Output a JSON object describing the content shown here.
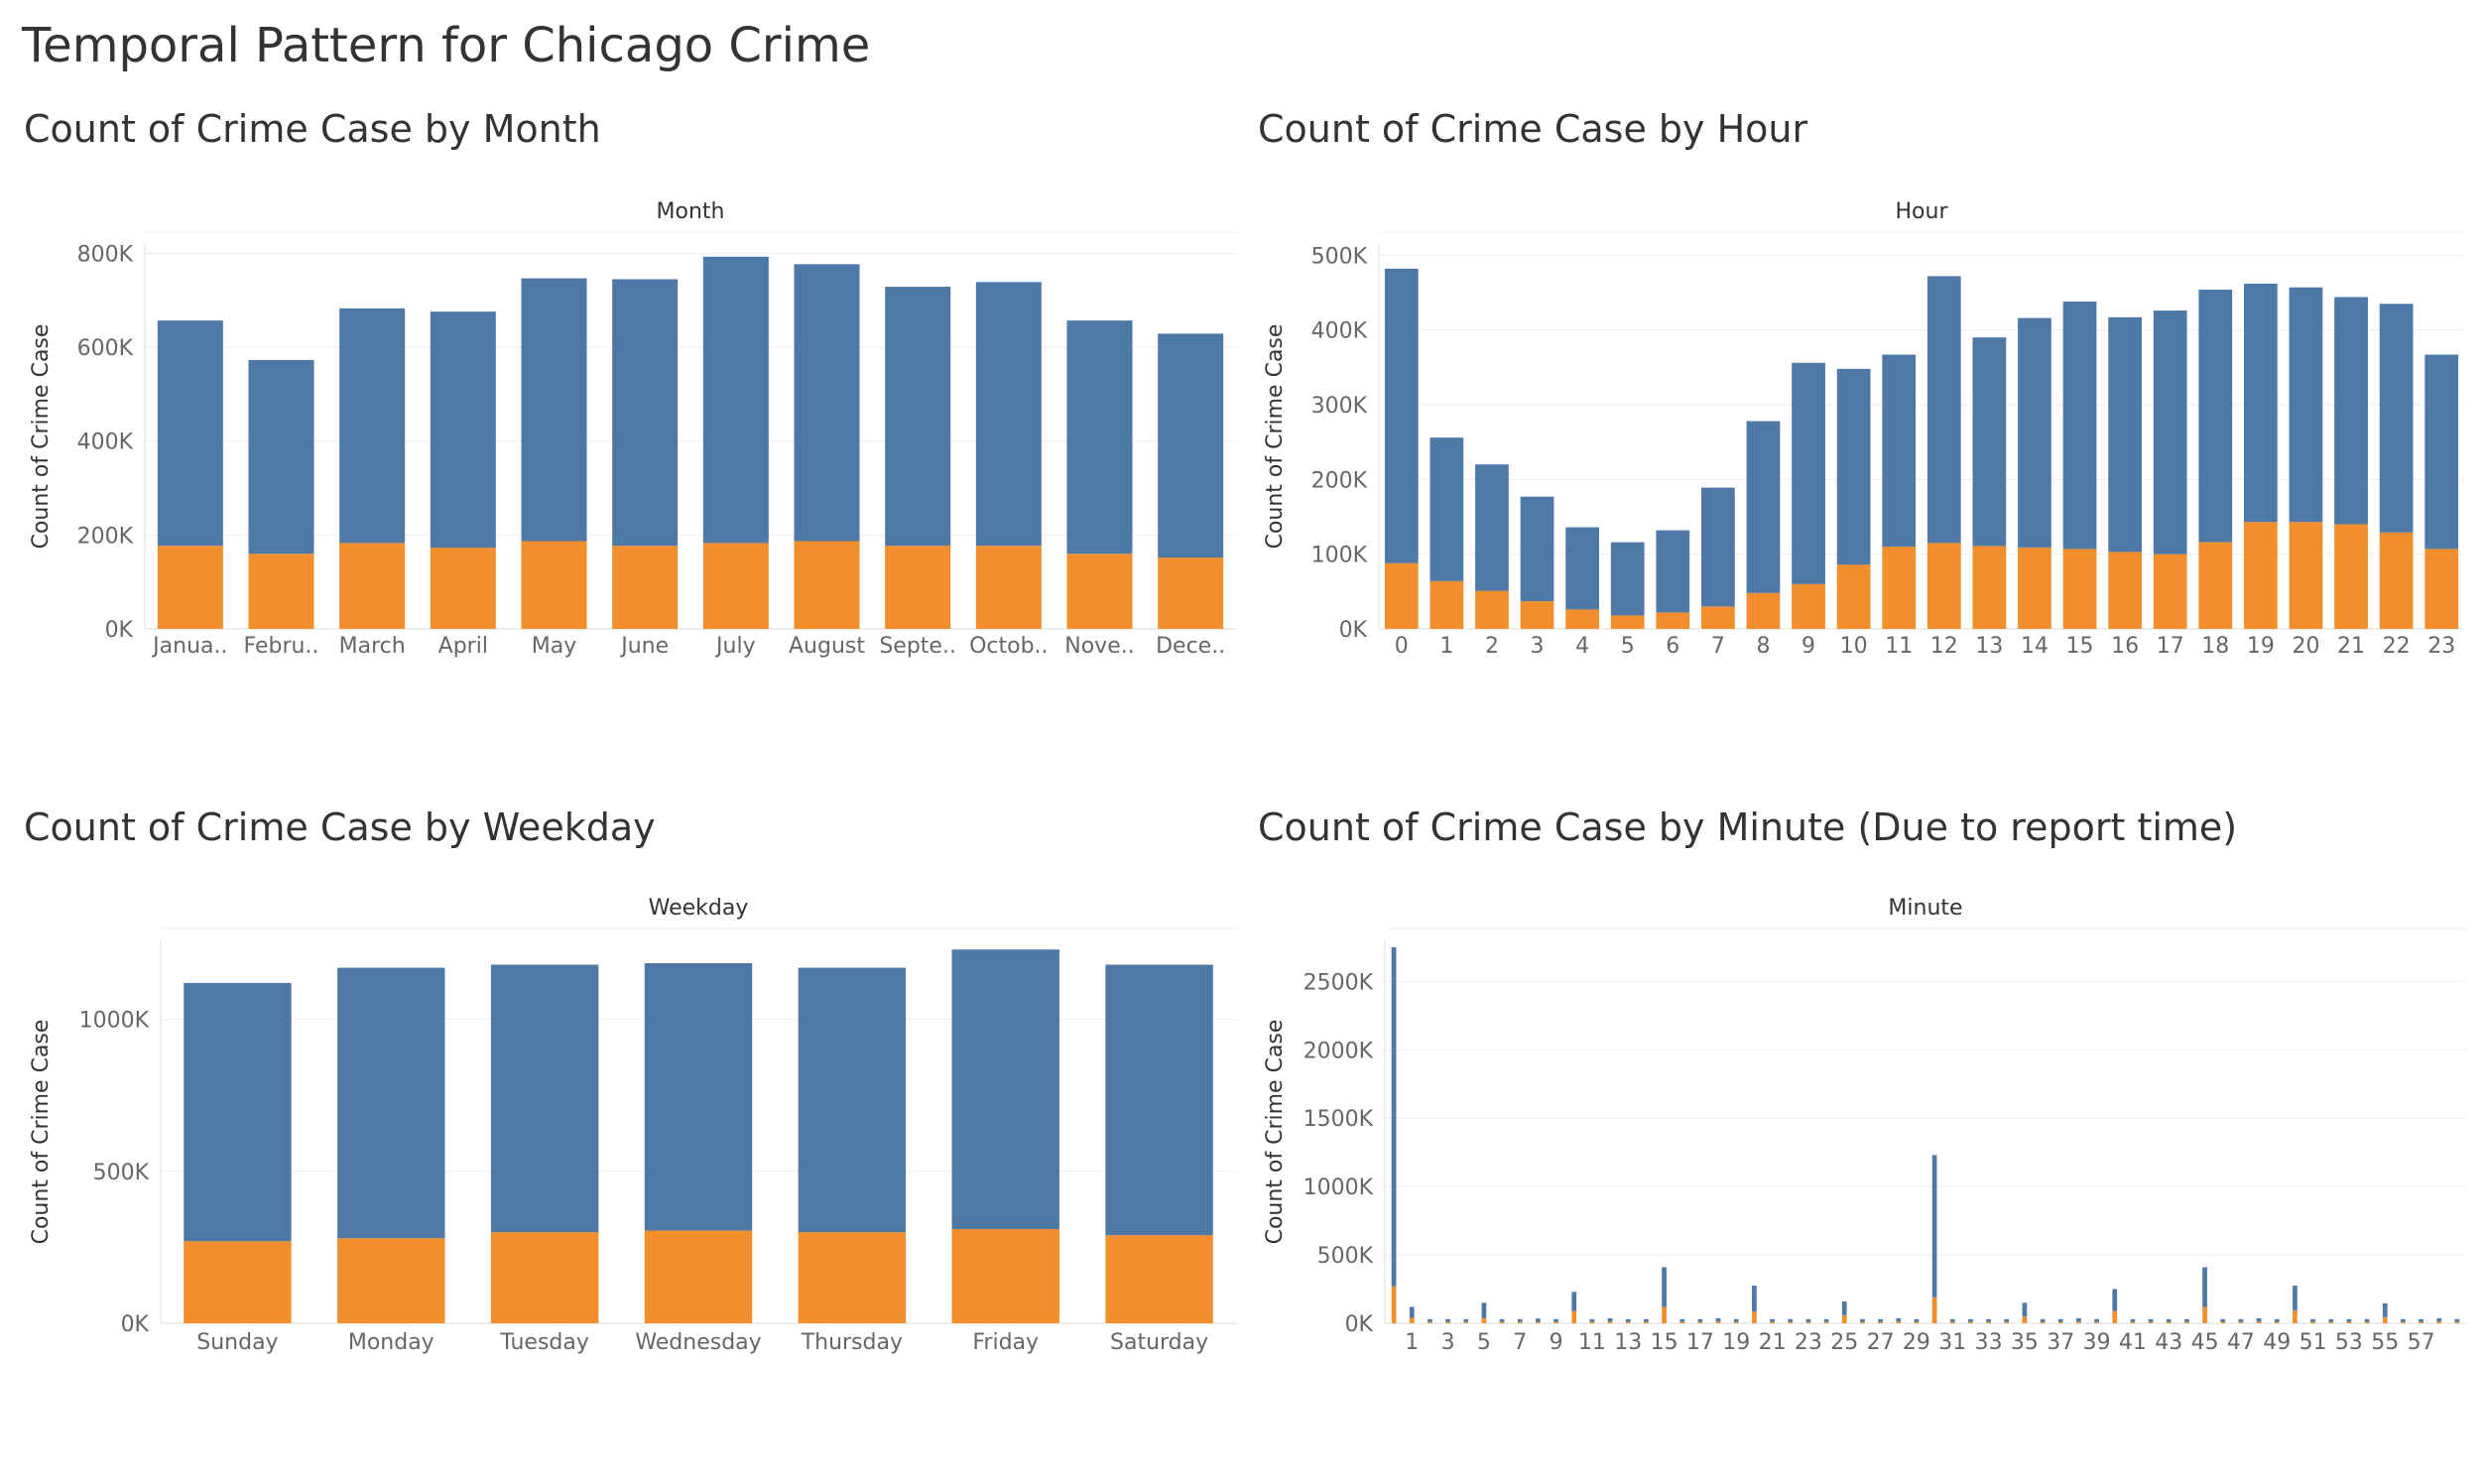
{
  "dashboard": {
    "title": "Temporal Pattern for Chicago Crime"
  },
  "colors": {
    "total": "#4e79a7",
    "subset": "#f28e2b",
    "gridline": "#eeeeee",
    "axisline": "#dddddd",
    "label": "#666666"
  },
  "chart_data": [
    {
      "id": "month",
      "type": "bar",
      "stacked": true,
      "title": "Count of Crime Case by Month",
      "header": "Month",
      "ylabel": "Count of Crime Case",
      "ylim": [
        0,
        820000
      ],
      "yticks": [
        0,
        200000,
        400000,
        600000,
        800000
      ],
      "categories": [
        "January",
        "February",
        "March",
        "April",
        "May",
        "June",
        "July",
        "August",
        "September",
        "October",
        "November",
        "December"
      ],
      "category_labels": [
        "Janua..",
        "Febru..",
        "March",
        "April",
        "May",
        "June",
        "July",
        "August",
        "Septe..",
        "Octob..",
        "Nove..",
        "Dece.."
      ],
      "series": [
        {
          "values": [
            177000,
            160000,
            183000,
            173000,
            187000,
            177000,
            183000,
            187000,
            177000,
            177000,
            160000,
            152000
          ]
        },
        {
          "values": [
            480000,
            413000,
            500000,
            503000,
            560000,
            568000,
            610000,
            590000,
            552000,
            562000,
            497000,
            477000
          ]
        }
      ]
    },
    {
      "id": "hour",
      "type": "bar",
      "stacked": true,
      "title": "Count of Crime Case by Hour",
      "header": "Hour",
      "ylabel": "Count of Crime Case",
      "ylim": [
        0,
        515000
      ],
      "yticks": [
        0,
        100000,
        200000,
        300000,
        400000,
        500000
      ],
      "categories": [
        "0",
        "1",
        "2",
        "3",
        "4",
        "5",
        "6",
        "7",
        "8",
        "9",
        "10",
        "11",
        "12",
        "13",
        "14",
        "15",
        "16",
        "17",
        "18",
        "19",
        "20",
        "21",
        "22",
        "23"
      ],
      "series": [
        {
          "values": [
            88000,
            64000,
            51000,
            37000,
            26000,
            18000,
            22000,
            30000,
            48000,
            60000,
            86000,
            110000,
            115000,
            111000,
            109000,
            107000,
            103000,
            100000,
            116000,
            143000,
            143000,
            140000,
            129000,
            107000
          ]
        },
        {
          "values": [
            394000,
            192000,
            169000,
            140000,
            110000,
            98000,
            110000,
            159000,
            230000,
            296000,
            262000,
            257000,
            357000,
            279000,
            307000,
            331000,
            314000,
            326000,
            338000,
            319000,
            314000,
            304000,
            306000,
            260000
          ]
        }
      ]
    },
    {
      "id": "weekday",
      "type": "bar",
      "stacked": true,
      "title": "Count of Crime Case by Weekday",
      "header": "Weekday",
      "ylabel": "Count of Crime Case",
      "ylim": [
        0,
        1260000
      ],
      "yticks": [
        0,
        500000,
        1000000
      ],
      "categories": [
        "Sunday",
        "Monday",
        "Tuesday",
        "Wednesday",
        "Thursday",
        "Friday",
        "Saturday"
      ],
      "series": [
        {
          "values": [
            270000,
            280000,
            300000,
            305000,
            300000,
            310000,
            290000
          ]
        },
        {
          "values": [
            850000,
            890000,
            880000,
            880000,
            870000,
            920000,
            890000
          ]
        }
      ]
    },
    {
      "id": "minute",
      "type": "bar",
      "stacked": true,
      "title": "Count of Crime Case by Minute (Due to report time)",
      "header": "Minute",
      "ylabel": "Count of Crime Case",
      "ylim": [
        0,
        2800000
      ],
      "yticks": [
        0,
        500000,
        1000000,
        1500000,
        2000000,
        2500000
      ],
      "categories": [
        "0",
        "1",
        "2",
        "3",
        "4",
        "5",
        "6",
        "7",
        "8",
        "9",
        "10",
        "11",
        "12",
        "13",
        "14",
        "15",
        "16",
        "17",
        "18",
        "19",
        "20",
        "21",
        "22",
        "23",
        "24",
        "25",
        "26",
        "27",
        "28",
        "29",
        "30",
        "31",
        "32",
        "33",
        "34",
        "35",
        "36",
        "37",
        "38",
        "39",
        "40",
        "41",
        "42",
        "43",
        "44",
        "45",
        "46",
        "47",
        "48",
        "49",
        "50",
        "51",
        "52",
        "53",
        "54",
        "55",
        "56",
        "57",
        "58",
        "59"
      ],
      "category_labels": [
        "",
        "1",
        "",
        "3",
        "",
        "5",
        "",
        "7",
        "",
        "9",
        "",
        "11",
        "",
        "13",
        "",
        "15",
        "",
        "17",
        "",
        "19",
        "",
        "21",
        "",
        "23",
        "",
        "25",
        "",
        "27",
        "",
        "29",
        "",
        "31",
        "",
        "33",
        "",
        "35",
        "",
        "37",
        "",
        "39",
        "",
        "41",
        "",
        "43",
        "",
        "45",
        "",
        "47",
        "",
        "49",
        "",
        "51",
        "",
        "53",
        "",
        "55",
        "",
        "57",
        "",
        ""
      ],
      "series": [
        {
          "values": [
            270000,
            40000,
            10000,
            10000,
            10000,
            40000,
            10000,
            10000,
            10000,
            10000,
            90000,
            10000,
            12000,
            10000,
            10000,
            120000,
            10000,
            10000,
            12000,
            10000,
            85000,
            10000,
            10000,
            10000,
            10000,
            60000,
            10000,
            10000,
            12000,
            10000,
            190000,
            10000,
            10000,
            10000,
            10000,
            50000,
            10000,
            10000,
            12000,
            10000,
            90000,
            10000,
            10000,
            10000,
            10000,
            120000,
            10000,
            10000,
            12000,
            10000,
            95000,
            10000,
            10000,
            10000,
            10000,
            45000,
            10000,
            10000,
            12000,
            10000
          ]
        },
        {
          "values": [
            2480000,
            80000,
            20000,
            20000,
            20000,
            110000,
            20000,
            20000,
            25000,
            20000,
            140000,
            20000,
            25000,
            20000,
            20000,
            290000,
            20000,
            20000,
            25000,
            20000,
            190000,
            20000,
            20000,
            20000,
            20000,
            100000,
            20000,
            20000,
            25000,
            20000,
            1040000,
            20000,
            20000,
            20000,
            20000,
            100000,
            20000,
            20000,
            25000,
            20000,
            160000,
            20000,
            20000,
            20000,
            20000,
            290000,
            20000,
            20000,
            25000,
            20000,
            180000,
            20000,
            20000,
            20000,
            20000,
            100000,
            20000,
            20000,
            25000,
            20000
          ]
        }
      ]
    }
  ]
}
